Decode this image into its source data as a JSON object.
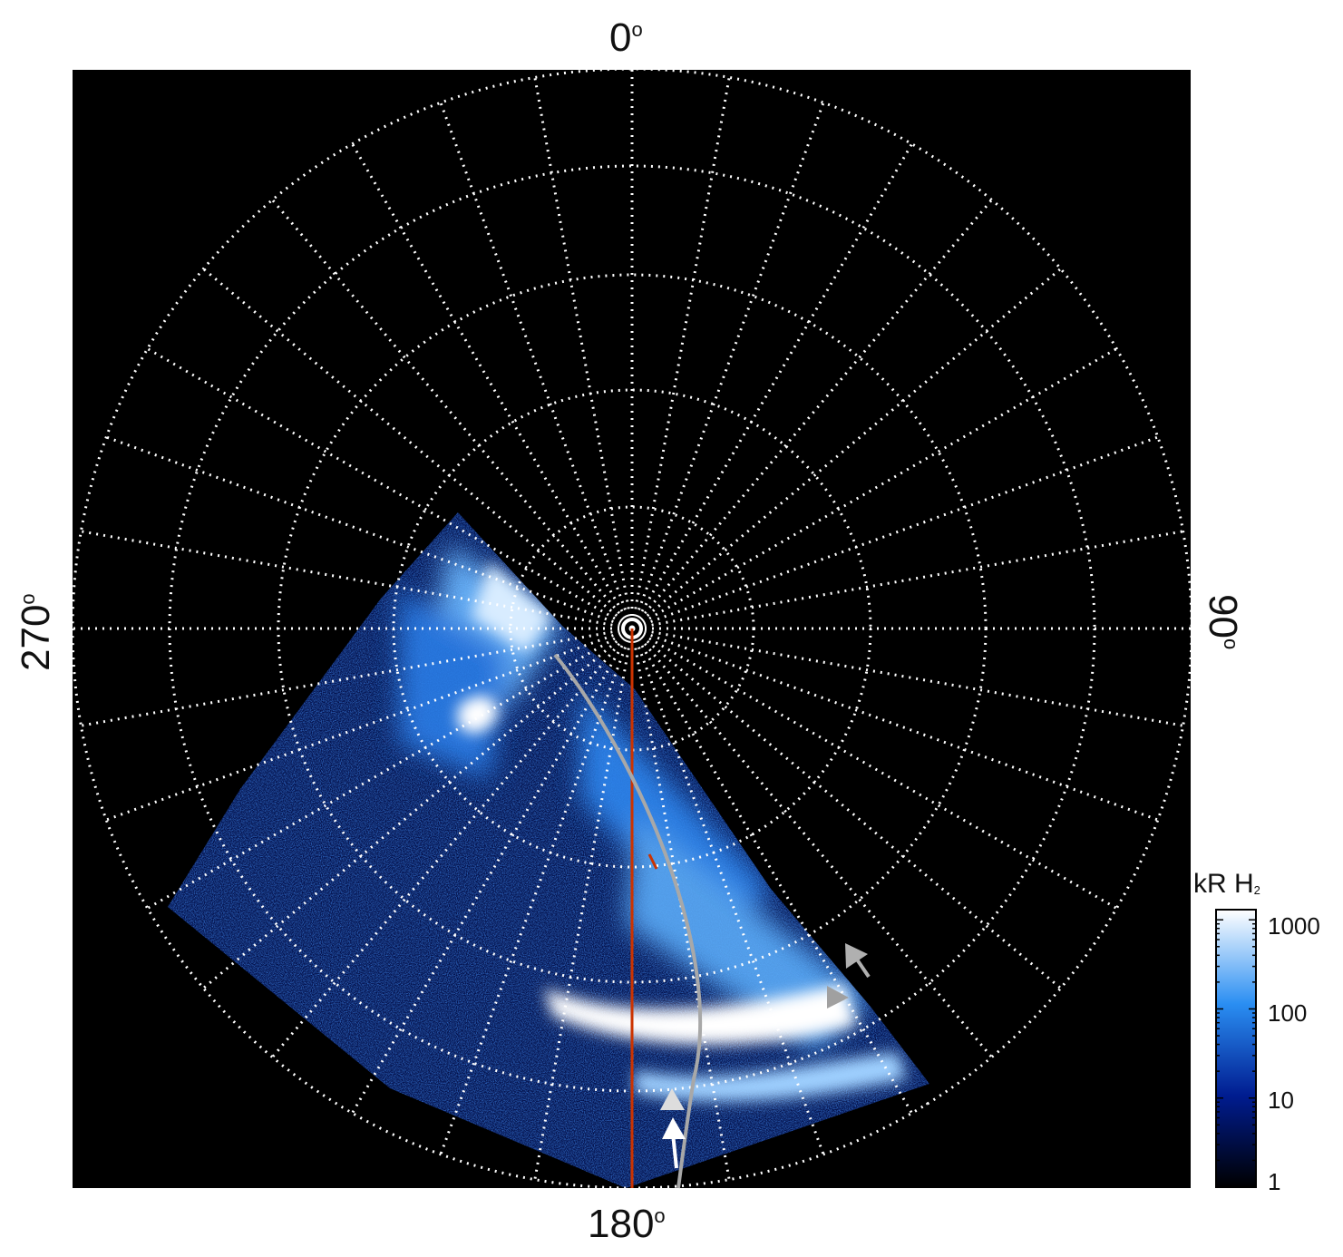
{
  "axis_labels": {
    "top": {
      "value": "0",
      "unit": "o"
    },
    "right": {
      "value": "90",
      "unit": "o"
    },
    "bottom": {
      "value": "180",
      "unit": "o"
    },
    "left": {
      "value": "270",
      "unit": "o"
    }
  },
  "colorbar": {
    "title": "kR H",
    "title_sub": "2",
    "ticks": [
      "1",
      "10",
      "100",
      "1000"
    ],
    "scale": "log",
    "range": [
      1,
      1000
    ]
  },
  "colors": {
    "background": "#000000",
    "grid": "#ffffff",
    "aurora_bright": "#ffffff",
    "aurora_mid": "#3a8fe8",
    "aurora_dim": "#0a2fa0",
    "meridian_line": "#cc3300",
    "trace_line": "#a8a8a8",
    "arrow_white": "#ffffff",
    "arrow_grey": "#b0b0b0"
  },
  "grid": {
    "spokes_deg": 10,
    "rings": 5,
    "style": "dotted"
  }
}
